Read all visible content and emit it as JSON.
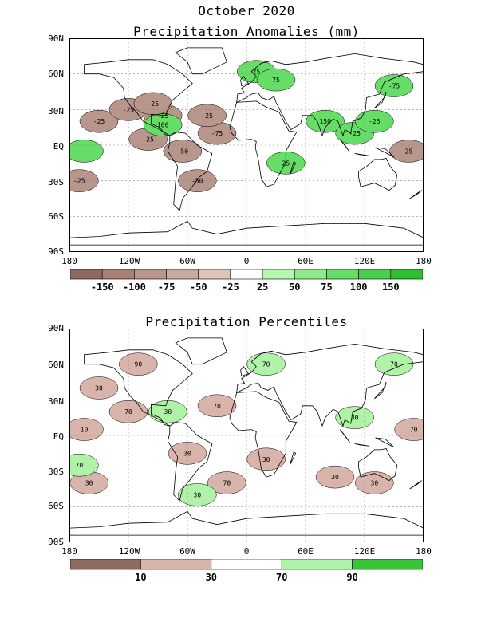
{
  "title": "October 2020",
  "chart_data": [
    {
      "type": "heatmap",
      "title": "Precipitation Anomalies (mm)",
      "lat_ticks": [
        "90N",
        "60N",
        "30N",
        "EQ",
        "30S",
        "60S",
        "90S"
      ],
      "lon_ticks": [
        "180",
        "120W",
        "60W",
        "0",
        "60E",
        "120E",
        "180"
      ],
      "colorbar": {
        "labels": [
          "-150",
          "-100",
          "-75",
          "-50",
          "-25",
          "25",
          "50",
          "75",
          "100",
          "150"
        ],
        "colors": [
          "#8f6a5f",
          "#a88076",
          "#b8968c",
          "#c9aaa0",
          "#e0c2b8",
          "#ffffff",
          "#b7f5b0",
          "#8fea88",
          "#66dd66",
          "#4acd4a",
          "#2fbf2f"
        ]
      },
      "contour_labels": [
        "-25",
        "-25",
        "-25",
        "-25",
        "-50",
        "-50",
        "-75",
        "-25",
        "-25",
        "-25",
        "25",
        "25",
        "75",
        "100",
        "150",
        "-25",
        "-25",
        "-75",
        "25"
      ],
      "patches": [
        {
          "lon": -150,
          "lat": 20,
          "kind": "neg"
        },
        {
          "lon": -120,
          "lat": 30,
          "kind": "neg"
        },
        {
          "lon": -100,
          "lat": 5,
          "kind": "neg"
        },
        {
          "lon": -85,
          "lat": 25,
          "kind": "neg"
        },
        {
          "lon": -65,
          "lat": -5,
          "kind": "neg"
        },
        {
          "lon": -50,
          "lat": -30,
          "kind": "neg"
        },
        {
          "lon": -30,
          "lat": 10,
          "kind": "neg"
        },
        {
          "lon": -170,
          "lat": -30,
          "kind": "neg"
        },
        {
          "lon": -40,
          "lat": 25,
          "kind": "neg"
        },
        {
          "lon": -95,
          "lat": 35,
          "kind": "neg"
        },
        {
          "lon": 165,
          "lat": -5,
          "kind": "neg"
        },
        {
          "lon": 10,
          "lat": 62,
          "kind": "pos"
        },
        {
          "lon": 30,
          "lat": 55,
          "kind": "pos"
        },
        {
          "lon": -85,
          "lat": 17,
          "kind": "pos"
        },
        {
          "lon": 80,
          "lat": 20,
          "kind": "pos"
        },
        {
          "lon": 110,
          "lat": 10,
          "kind": "pos"
        },
        {
          "lon": 130,
          "lat": 20,
          "kind": "pos"
        },
        {
          "lon": 150,
          "lat": 50,
          "kind": "pos"
        },
        {
          "lon": 40,
          "lat": -15,
          "kind": "pos"
        },
        {
          "lon": -165,
          "lat": -5,
          "kind": "pos"
        }
      ]
    },
    {
      "type": "heatmap",
      "title": "Precipitation Percentiles",
      "lat_ticks": [
        "90N",
        "60N",
        "30N",
        "EQ",
        "30S",
        "60S",
        "90S"
      ],
      "lon_ticks": [
        "180",
        "120W",
        "60W",
        "0",
        "60E",
        "120E",
        "180"
      ],
      "colorbar": {
        "labels": [
          "10",
          "30",
          "70",
          "90"
        ],
        "colors": [
          "#8f6a5f",
          "#d9b4aa",
          "#ffffff",
          "#b0f2a8",
          "#3ac23a"
        ]
      },
      "contour_labels": [
        "30",
        "70",
        "10",
        "30",
        "30",
        "70",
        "30",
        "70",
        "30",
        "90",
        "70",
        "30",
        "70",
        "30",
        "70",
        "30",
        "70",
        "30"
      ],
      "patches": [
        {
          "lon": -150,
          "lat": 40,
          "kind": "low"
        },
        {
          "lon": -120,
          "lat": 20,
          "kind": "low"
        },
        {
          "lon": -165,
          "lat": 5,
          "kind": "low"
        },
        {
          "lon": -60,
          "lat": -15,
          "kind": "low"
        },
        {
          "lon": -160,
          "lat": -40,
          "kind": "low"
        },
        {
          "lon": -30,
          "lat": 25,
          "kind": "low"
        },
        {
          "lon": 20,
          "lat": -20,
          "kind": "low"
        },
        {
          "lon": 170,
          "lat": 5,
          "kind": "low"
        },
        {
          "lon": 130,
          "lat": -40,
          "kind": "low"
        },
        {
          "lon": -110,
          "lat": 60,
          "kind": "low"
        },
        {
          "lon": -20,
          "lat": -40,
          "kind": "low"
        },
        {
          "lon": 90,
          "lat": -35,
          "kind": "low"
        },
        {
          "lon": 20,
          "lat": 60,
          "kind": "high"
        },
        {
          "lon": 110,
          "lat": 15,
          "kind": "high"
        },
        {
          "lon": -170,
          "lat": -25,
          "kind": "high"
        },
        {
          "lon": -50,
          "lat": -50,
          "kind": "high"
        },
        {
          "lon": 150,
          "lat": 60,
          "kind": "high"
        },
        {
          "lon": -80,
          "lat": 20,
          "kind": "high"
        }
      ]
    }
  ]
}
